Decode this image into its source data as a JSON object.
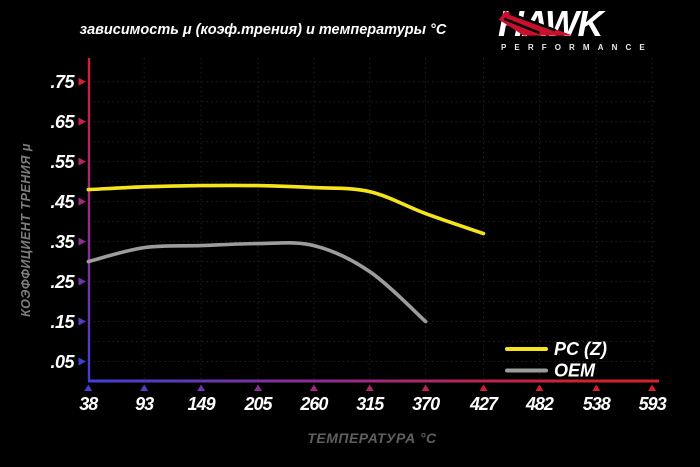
{
  "logo": {
    "brand": "HAWK",
    "sub": "PERFORMANCE",
    "wing_icon": "hawk-wing-icon",
    "red": "#c8102e"
  },
  "colors": {
    "background": "#000000",
    "title_text": "#ffffff",
    "tick_label_text": "#ffffff",
    "axis_title_text": "#5f5f5f",
    "grid": "#212121",
    "axis_cold": "#4040d8",
    "axis_mid": "#9a2a8a",
    "axis_hot": "#d42030"
  },
  "legend": {
    "position": "bottom-right",
    "items": [
      {
        "label": "PC (Z)",
        "color": "#f5e41c"
      },
      {
        "label": "OEM",
        "color": "#9c9c9c"
      }
    ]
  },
  "chart_data": {
    "type": "line",
    "title": "зависимость μ (коэф.трения) и температуры °C",
    "xlabel": "ТЕМПЕРАТУРА °C",
    "ylabel": "КОЭФФИЦИЕНТ ТРЕНИЯ μ",
    "grid": "dotted",
    "xlim": [
      38,
      593
    ],
    "ylim": [
      0,
      0.8
    ],
    "x_ticks": [
      38,
      93,
      149,
      205,
      260,
      315,
      370,
      427,
      482,
      538,
      593
    ],
    "x_tick_labels": [
      "38",
      "93",
      "149",
      "205",
      "260",
      "315",
      "370",
      "427",
      "482",
      "538",
      "593"
    ],
    "y_ticks": [
      0.05,
      0.15,
      0.25,
      0.35,
      0.45,
      0.55,
      0.65,
      0.75
    ],
    "y_tick_labels": [
      ".05",
      ".15",
      ".25",
      ".35",
      ".45",
      ".55",
      ".65",
      ".75"
    ],
    "y_minor_step": 0.05,
    "series": [
      {
        "name": "PC (Z)",
        "color": "#f5e41c",
        "points": [
          [
            38,
            0.48
          ],
          [
            93,
            0.487
          ],
          [
            149,
            0.49
          ],
          [
            205,
            0.49
          ],
          [
            260,
            0.485
          ],
          [
            315,
            0.475
          ],
          [
            370,
            0.42
          ],
          [
            427,
            0.37
          ]
        ]
      },
      {
        "name": "OEM",
        "color": "#9c9c9c",
        "points": [
          [
            38,
            0.3
          ],
          [
            93,
            0.335
          ],
          [
            149,
            0.34
          ],
          [
            205,
            0.345
          ],
          [
            260,
            0.34
          ],
          [
            315,
            0.275
          ],
          [
            370,
            0.15
          ]
        ]
      }
    ]
  }
}
